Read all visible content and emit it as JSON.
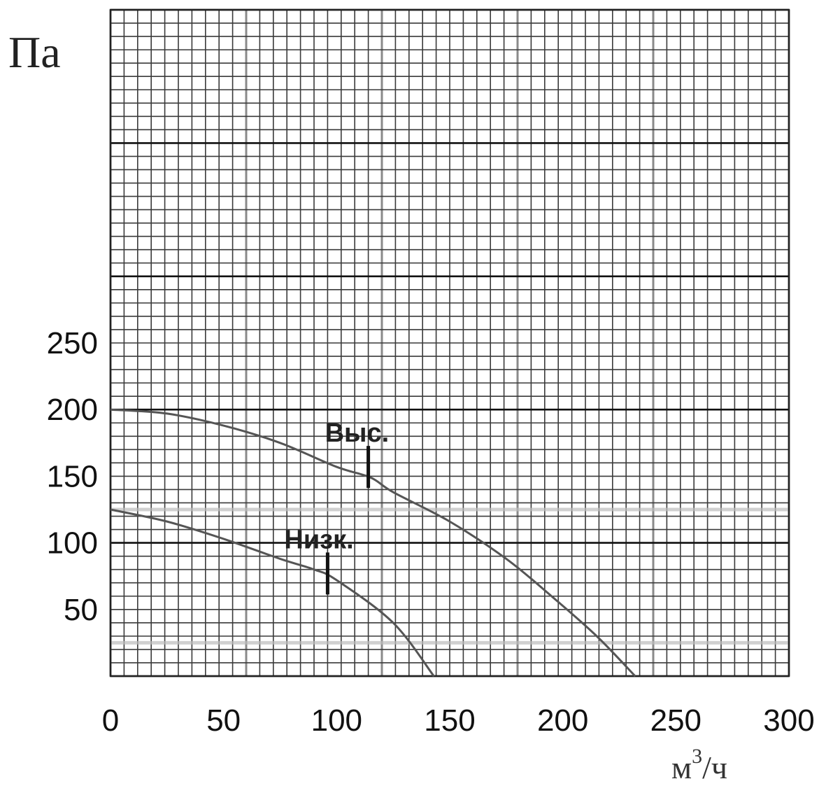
{
  "chart_data": {
    "type": "line",
    "y_unit": "Па",
    "x_unit_base": "м",
    "x_unit_sup": "3",
    "x_unit_tail": "/ч",
    "x_ticks": [
      "0",
      "50",
      "100",
      "150",
      "200",
      "250",
      "300"
    ],
    "y_ticks": [
      "50",
      "100",
      "150",
      "200",
      "250"
    ],
    "xlim": [
      0,
      300
    ],
    "ylim": [
      0,
      500
    ],
    "grid": true,
    "series": [
      {
        "name": "Выс.",
        "x": [
          0,
          25,
          50,
          75,
          100,
          115,
          125,
          150,
          175,
          195,
          215,
          232
        ],
        "y": [
          200,
          197,
          188,
          175,
          157,
          149,
          138,
          116,
          88,
          60,
          30,
          0
        ]
      },
      {
        "name": "Низк.",
        "x": [
          0,
          25,
          50,
          75,
          90,
          100,
          125,
          143
        ],
        "y": [
          125,
          116,
          103,
          88,
          80,
          72,
          40,
          0
        ]
      }
    ],
    "markers": [
      {
        "series": 0,
        "x": 114,
        "y": 157
      },
      {
        "series": 1,
        "x": 96,
        "y": 77
      }
    ]
  }
}
